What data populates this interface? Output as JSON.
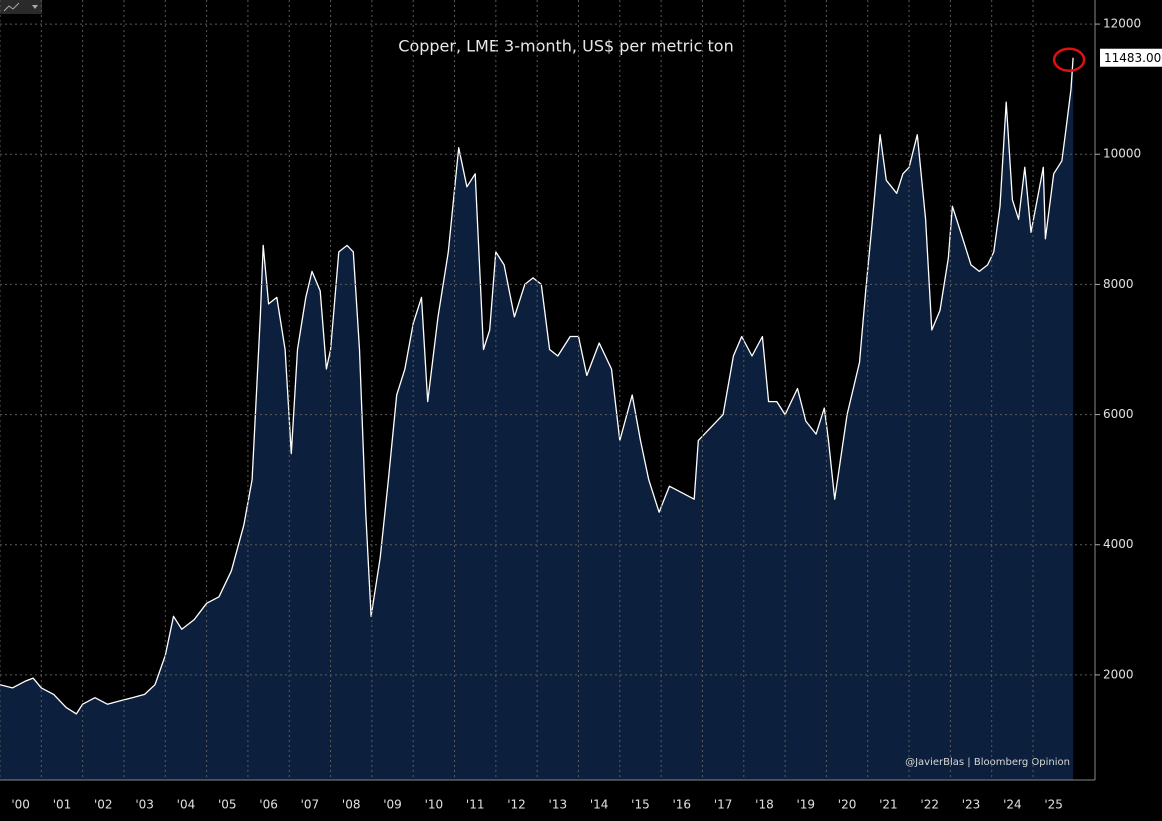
{
  "chart_data": {
    "type": "area",
    "title": "Copper, LME 3-month, US$ per metric ton",
    "source": "@JavierBlas | Bloomberg Opinion",
    "color": "#0c1f3c",
    "line_color": "#ffffff",
    "grid": true,
    "x": [
      2000.0,
      2000.3,
      2000.6,
      2000.8,
      2001.0,
      2001.3,
      2001.6,
      2001.85,
      2002.0,
      2002.3,
      2002.6,
      2002.9,
      2003.2,
      2003.5,
      2003.75,
      2004.0,
      2004.2,
      2004.4,
      2004.7,
      2005.0,
      2005.3,
      2005.6,
      2005.9,
      2006.1,
      2006.3,
      2006.37,
      2006.5,
      2006.7,
      2006.9,
      2007.05,
      2007.2,
      2007.4,
      2007.55,
      2007.75,
      2007.9,
      2008.0,
      2008.2,
      2008.4,
      2008.55,
      2008.7,
      2008.85,
      2008.98,
      2009.2,
      2009.4,
      2009.6,
      2009.8,
      2010.0,
      2010.2,
      2010.35,
      2010.6,
      2010.85,
      2011.1,
      2011.3,
      2011.5,
      2011.7,
      2011.85,
      2012.0,
      2012.2,
      2012.45,
      2012.7,
      2012.9,
      2013.1,
      2013.3,
      2013.5,
      2013.8,
      2014.0,
      2014.2,
      2014.5,
      2014.8,
      2015.0,
      2015.3,
      2015.5,
      2015.7,
      2015.95,
      2016.2,
      2016.5,
      2016.8,
      2016.9,
      2017.2,
      2017.5,
      2017.75,
      2017.95,
      2018.2,
      2018.45,
      2018.6,
      2018.8,
      2019.0,
      2019.3,
      2019.5,
      2019.75,
      2019.95,
      2020.05,
      2020.2,
      2020.5,
      2020.8,
      2020.95,
      2021.1,
      2021.3,
      2021.45,
      2021.7,
      2021.85,
      2022.0,
      2022.2,
      2022.4,
      2022.55,
      2022.75,
      2022.95,
      2023.05,
      2023.3,
      2023.5,
      2023.7,
      2023.9,
      2024.05,
      2024.2,
      2024.35,
      2024.5,
      2024.65,
      2024.8,
      2024.95,
      2025.1,
      2025.25,
      2025.3,
      2025.5,
      2025.7,
      2025.8,
      2025.92,
      2025.97
    ],
    "values": [
      1850,
      1800,
      1900,
      1950,
      1800,
      1700,
      1500,
      1400,
      1550,
      1650,
      1550,
      1600,
      1650,
      1700,
      1850,
      2300,
      2900,
      2700,
      2850,
      3100,
      3200,
      3600,
      4300,
      5000,
      7500,
      8600,
      7700,
      7800,
      7000,
      5400,
      7000,
      7800,
      8200,
      7900,
      6700,
      7000,
      8500,
      8600,
      8500,
      7000,
      4500,
      2900,
      3800,
      5000,
      6300,
      6700,
      7400,
      7800,
      6200,
      7500,
      8500,
      10100,
      9500,
      9700,
      7000,
      7300,
      8500,
      8300,
      7500,
      8000,
      8100,
      8000,
      7000,
      6900,
      7200,
      7200,
      6600,
      7100,
      6700,
      5600,
      6300,
      5600,
      5000,
      4500,
      4900,
      4800,
      4700,
      5600,
      5800,
      6000,
      6900,
      7200,
      6900,
      7200,
      6200,
      6200,
      6000,
      6400,
      5900,
      5700,
      6100,
      5600,
      4700,
      6000,
      6800,
      7900,
      8900,
      10300,
      9600,
      9400,
      9700,
      9800,
      10300,
      9000,
      7300,
      7600,
      8400,
      9200,
      8700,
      8300,
      8200,
      8300,
      8500,
      9200,
      10800,
      9300,
      9000,
      9800,
      8800,
      9300,
      9800,
      8700,
      9700,
      9900,
      10400,
      11000,
      11483
    ],
    "last_price": {
      "value": 11483,
      "label": "11483.00"
    },
    "xlim": [
      2000,
      2026.5
    ],
    "xticks": [
      {
        "value": 2000.5,
        "label": "'00"
      },
      {
        "value": 2001.5,
        "label": "'01"
      },
      {
        "value": 2002.5,
        "label": "'02"
      },
      {
        "value": 2003.5,
        "label": "'03"
      },
      {
        "value": 2004.5,
        "label": "'04"
      },
      {
        "value": 2005.5,
        "label": "'05"
      },
      {
        "value": 2006.5,
        "label": "'06"
      },
      {
        "value": 2007.5,
        "label": "'07"
      },
      {
        "value": 2008.5,
        "label": "'08"
      },
      {
        "value": 2009.5,
        "label": "'09"
      },
      {
        "value": 2010.5,
        "label": "'10"
      },
      {
        "value": 2011.5,
        "label": "'11"
      },
      {
        "value": 2012.5,
        "label": "'12"
      },
      {
        "value": 2013.5,
        "label": "'13"
      },
      {
        "value": 2014.5,
        "label": "'14"
      },
      {
        "value": 2015.5,
        "label": "'15"
      },
      {
        "value": 2016.5,
        "label": "'16"
      },
      {
        "value": 2017.5,
        "label": "'17"
      },
      {
        "value": 2018.5,
        "label": "'18"
      },
      {
        "value": 2019.5,
        "label": "'19"
      },
      {
        "value": 2020.5,
        "label": "'20"
      },
      {
        "value": 2021.5,
        "label": "'21"
      },
      {
        "value": 2022.5,
        "label": "'22"
      },
      {
        "value": 2023.5,
        "label": "'23"
      },
      {
        "value": 2024.5,
        "label": "'24"
      },
      {
        "value": 2025.5,
        "label": "'25"
      }
    ],
    "ylim": [
      385,
      12370
    ],
    "yticks": [
      2000,
      4000,
      6000,
      8000,
      10000,
      12000
    ]
  }
}
